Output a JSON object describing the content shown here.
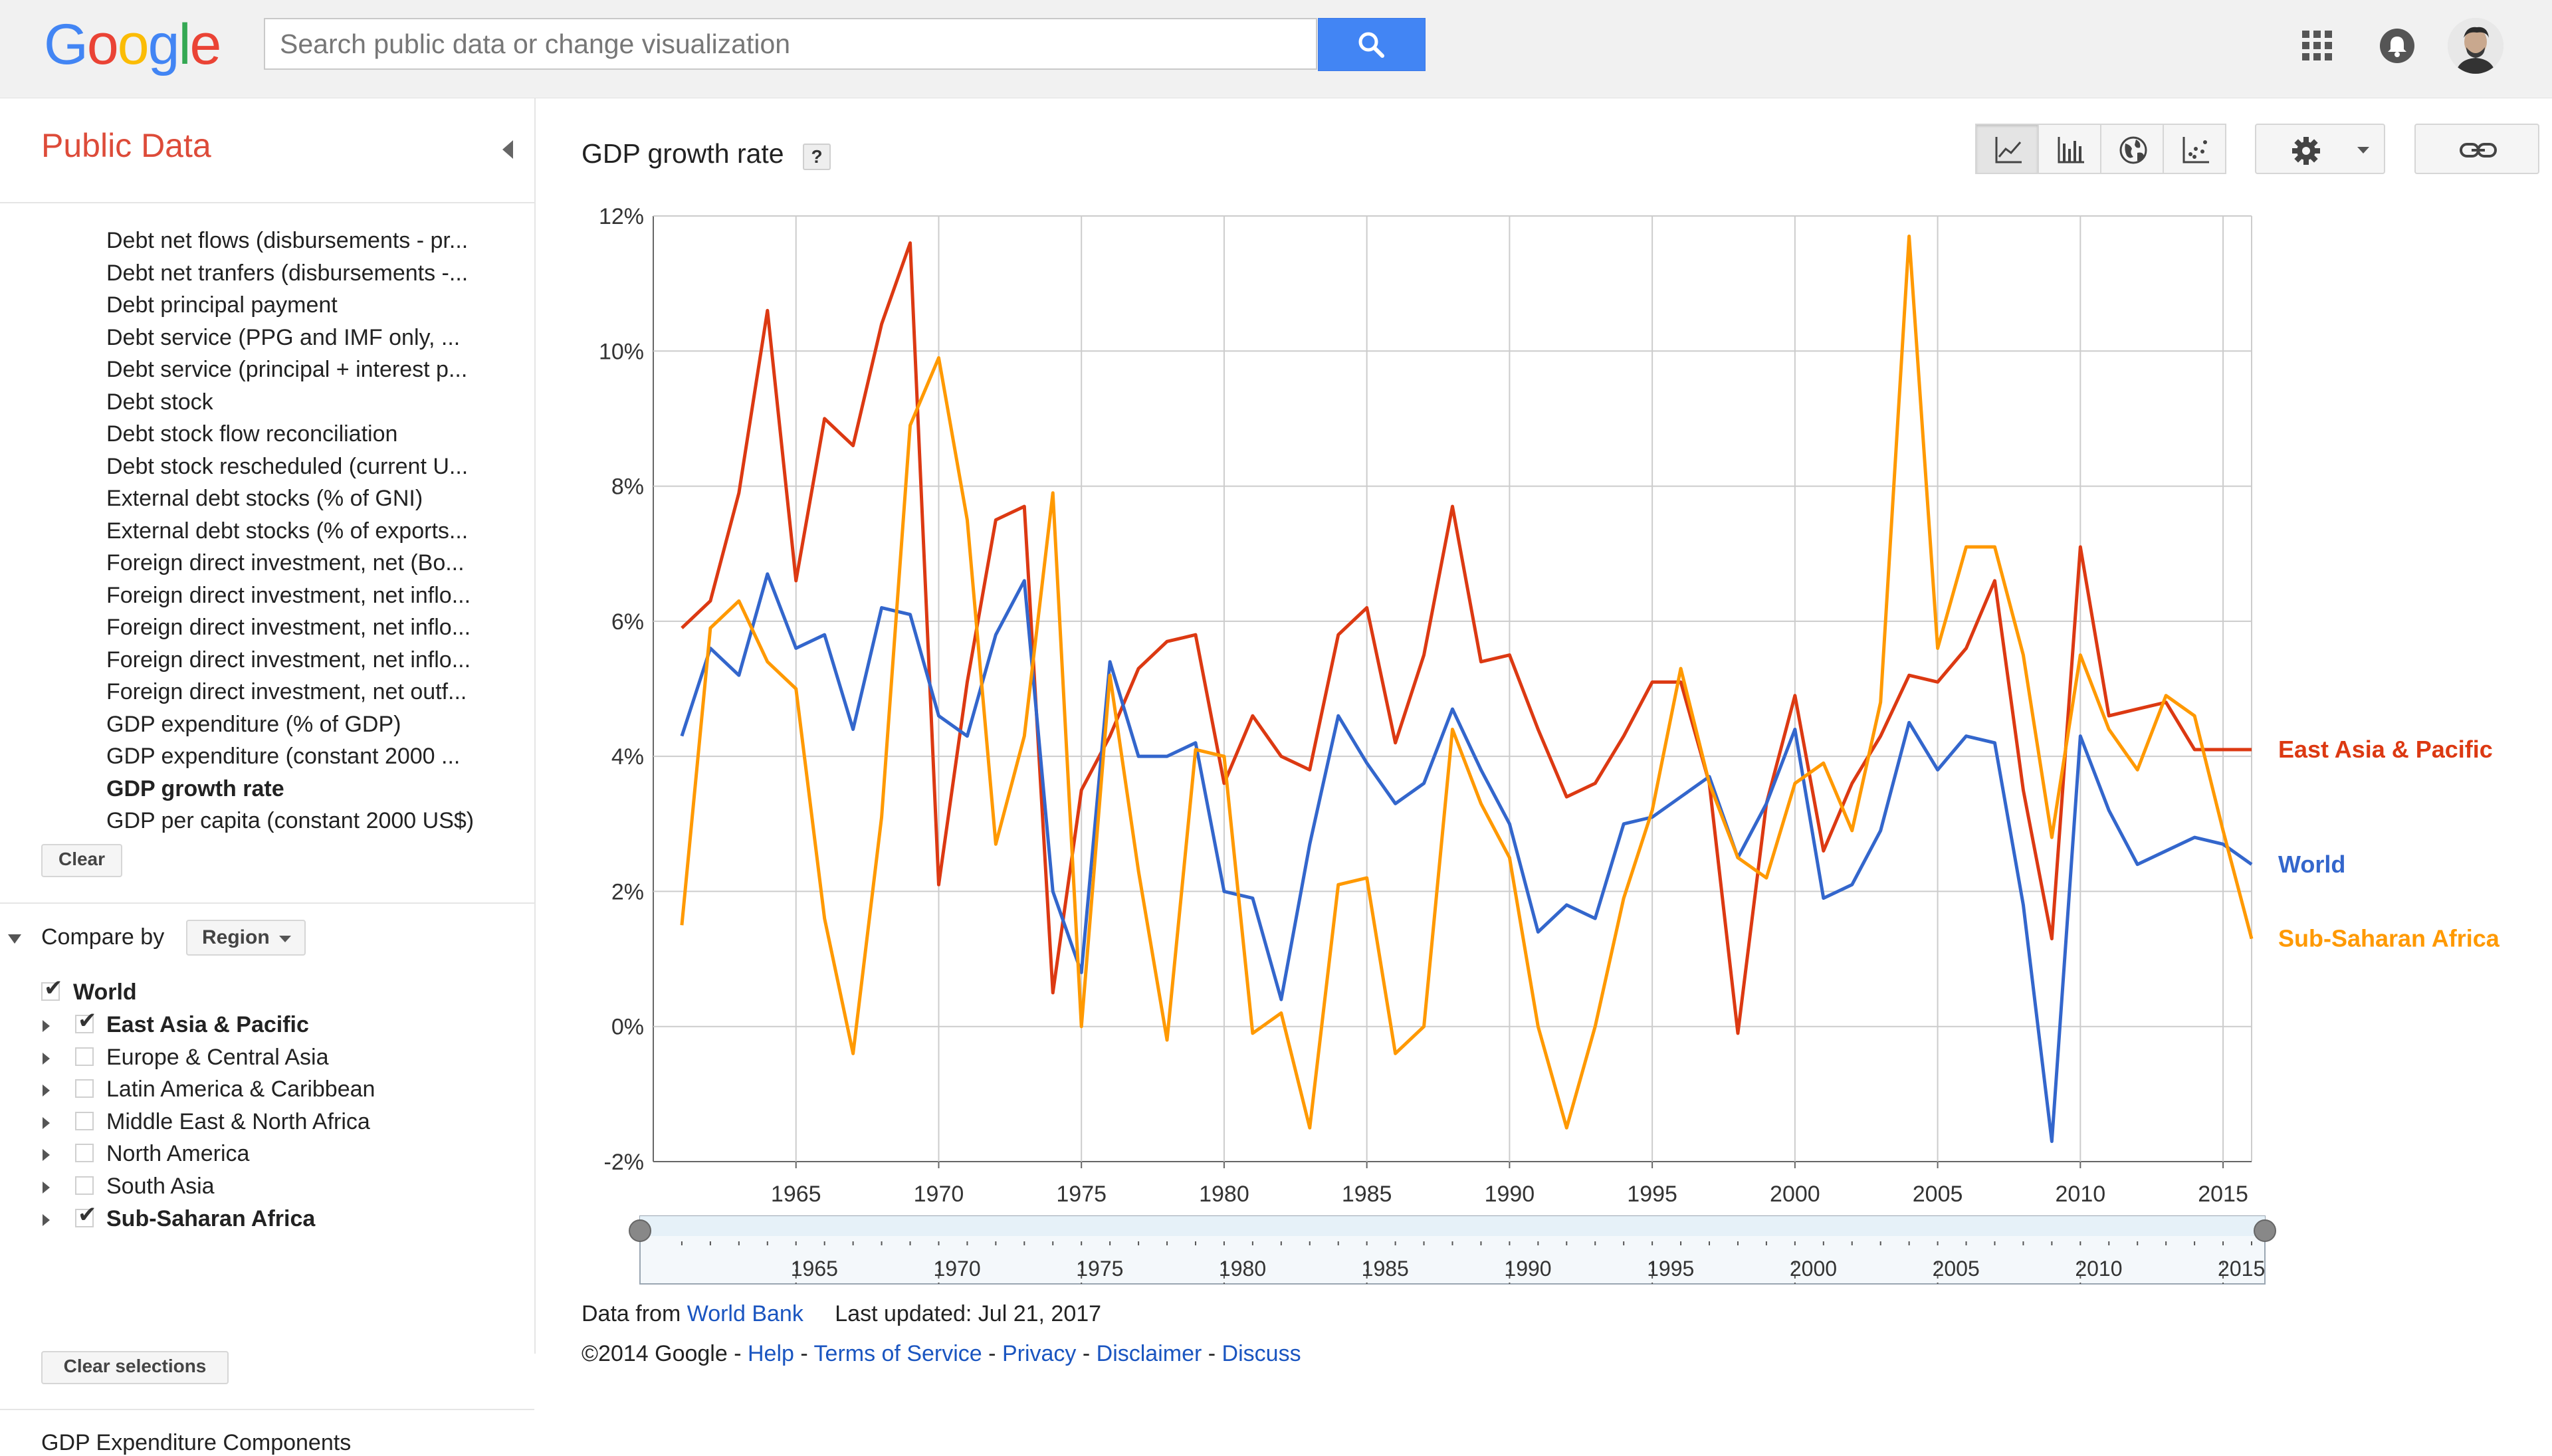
{
  "header": {
    "logo_letters": [
      {
        "ch": "G",
        "color": "#4285f4"
      },
      {
        "ch": "o",
        "color": "#ea4335"
      },
      {
        "ch": "o",
        "color": "#fbbc05"
      },
      {
        "ch": "g",
        "color": "#4285f4"
      },
      {
        "ch": "l",
        "color": "#34a853"
      },
      {
        "ch": "e",
        "color": "#ea4335"
      }
    ],
    "search_placeholder": "Search public data or change visualization",
    "icons": [
      "apps-icon",
      "notifications-icon",
      "avatar"
    ]
  },
  "sidebar": {
    "title": "Public Data",
    "metrics": [
      {
        "label": "Debt net flows (disbursements - pr...",
        "selected": false
      },
      {
        "label": "Debt net tranfers (disbursements -...",
        "selected": false
      },
      {
        "label": "Debt principal payment",
        "selected": false
      },
      {
        "label": "Debt service (PPG and IMF only, ...",
        "selected": false
      },
      {
        "label": "Debt service (principal + interest p...",
        "selected": false
      },
      {
        "label": "Debt stock",
        "selected": false
      },
      {
        "label": "Debt stock flow reconciliation",
        "selected": false
      },
      {
        "label": "Debt stock rescheduled (current U...",
        "selected": false
      },
      {
        "label": "External debt stocks (% of GNI)",
        "selected": false
      },
      {
        "label": "External debt stocks (% of exports...",
        "selected": false
      },
      {
        "label": "Foreign direct investment, net (Bo...",
        "selected": false
      },
      {
        "label": "Foreign direct investment, net inflo...",
        "selected": false
      },
      {
        "label": "Foreign direct investment, net inflo...",
        "selected": false
      },
      {
        "label": "Foreign direct investment, net inflo...",
        "selected": false
      },
      {
        "label": "Foreign direct investment, net outf...",
        "selected": false
      },
      {
        "label": "GDP expenditure (% of GDP)",
        "selected": false
      },
      {
        "label": "GDP expenditure (constant 2000 ...",
        "selected": false
      },
      {
        "label": "GDP growth rate",
        "selected": true
      },
      {
        "label": "GDP per capita (constant 2000 US$)",
        "selected": false
      }
    ],
    "clear_label": "Clear",
    "compare_by_label": "Compare by",
    "compare_by_value": "Region",
    "world": {
      "label": "World",
      "checked": true
    },
    "regions": [
      {
        "label": "East Asia & Pacific",
        "checked": true
      },
      {
        "label": "Europe & Central Asia",
        "checked": false
      },
      {
        "label": "Latin America & Caribbean",
        "checked": false
      },
      {
        "label": "Middle East & North Africa",
        "checked": false
      },
      {
        "label": "North America",
        "checked": false
      },
      {
        "label": "South Asia",
        "checked": false
      },
      {
        "label": "Sub-Saharan Africa",
        "checked": true
      }
    ],
    "clear_selections_label": "Clear selections",
    "next_section": "GDP Expenditure Components"
  },
  "main": {
    "title": "GDP growth rate",
    "help": "?",
    "view_buttons": [
      {
        "name": "line-chart-view-button",
        "icon": "line-chart-icon",
        "active": true
      },
      {
        "name": "bar-chart-view-button",
        "icon": "bar-chart-icon",
        "active": false
      },
      {
        "name": "map-view-button",
        "icon": "globe-icon",
        "active": false
      },
      {
        "name": "scatter-view-button",
        "icon": "scatter-chart-icon",
        "active": false
      }
    ],
    "settings_icon": "gear-icon",
    "link_icon": "link-icon"
  },
  "chart_data": {
    "type": "line",
    "title": "GDP growth rate",
    "xlabel": "",
    "ylabel": "",
    "xlim": [
      1960,
      2016
    ],
    "ylim": [
      -2,
      12
    ],
    "y_ticks": [
      -2,
      0,
      2,
      4,
      6,
      8,
      10,
      12
    ],
    "y_tick_labels": [
      "-2%",
      "0%",
      "2%",
      "4%",
      "6%",
      "8%",
      "10%",
      "12%"
    ],
    "x_ticks": [
      1965,
      1970,
      1975,
      1980,
      1985,
      1990,
      1995,
      2000,
      2005,
      2010,
      2015
    ],
    "x_tick_labels": [
      "1965",
      "1970",
      "1975",
      "1980",
      "1985",
      "1990",
      "1995",
      "2000",
      "2005",
      "2010",
      "2015"
    ],
    "grid": true,
    "legend": "right, labels at line ends",
    "x": [
      1961,
      1962,
      1963,
      1964,
      1965,
      1966,
      1967,
      1968,
      1969,
      1970,
      1971,
      1972,
      1973,
      1974,
      1975,
      1976,
      1977,
      1978,
      1979,
      1980,
      1981,
      1982,
      1983,
      1984,
      1985,
      1986,
      1987,
      1988,
      1989,
      1990,
      1991,
      1992,
      1993,
      1994,
      1995,
      1996,
      1997,
      1998,
      1999,
      2000,
      2001,
      2002,
      2003,
      2004,
      2005,
      2006,
      2007,
      2008,
      2009,
      2010,
      2011,
      2012,
      2013,
      2014,
      2015,
      2016
    ],
    "series": [
      {
        "name": "East Asia & Pacific",
        "color": "#dc3912",
        "values": [
          5.9,
          6.3,
          7.9,
          10.6,
          6.6,
          9.0,
          8.6,
          10.4,
          11.6,
          2.1,
          5.1,
          7.5,
          7.7,
          0.5,
          3.5,
          4.3,
          5.3,
          5.7,
          5.8,
          3.6,
          4.6,
          4.0,
          3.8,
          5.8,
          6.2,
          4.2,
          5.5,
          7.7,
          5.4,
          5.5,
          4.4,
          3.4,
          3.6,
          4.3,
          5.1,
          5.1,
          3.6,
          -0.1,
          3.3,
          4.9,
          2.6,
          3.6,
          4.3,
          5.2,
          5.1,
          5.6,
          6.6,
          3.5,
          1.3,
          7.1,
          4.6,
          4.7,
          4.8,
          4.1,
          4.1,
          4.1
        ]
      },
      {
        "name": "World",
        "color": "#3366cc",
        "values": [
          4.3,
          5.6,
          5.2,
          6.7,
          5.6,
          5.8,
          4.4,
          6.2,
          6.1,
          4.6,
          4.3,
          5.8,
          6.6,
          2.0,
          0.8,
          5.4,
          4.0,
          4.0,
          4.2,
          2.0,
          1.9,
          0.4,
          2.7,
          4.6,
          3.9,
          3.3,
          3.6,
          4.7,
          3.8,
          3.0,
          1.4,
          1.8,
          1.6,
          3.0,
          3.1,
          3.4,
          3.7,
          2.5,
          3.3,
          4.4,
          1.9,
          2.1,
          2.9,
          4.5,
          3.8,
          4.3,
          4.2,
          1.8,
          -1.7,
          4.3,
          3.2,
          2.4,
          2.6,
          2.8,
          2.7,
          2.4
        ]
      },
      {
        "name": "Sub-Saharan Africa",
        "color": "#ff9900",
        "values": [
          1.5,
          5.9,
          6.3,
          5.4,
          5.0,
          1.6,
          -0.4,
          3.1,
          8.9,
          9.9,
          7.5,
          2.7,
          4.3,
          7.9,
          0.0,
          5.2,
          2.3,
          -0.2,
          4.1,
          4.0,
          -0.1,
          0.2,
          -1.5,
          2.1,
          2.2,
          -0.4,
          0.0,
          4.4,
          3.3,
          2.5,
          0.0,
          -1.5,
          0.0,
          1.9,
          3.2,
          5.3,
          3.6,
          2.5,
          2.2,
          3.6,
          3.9,
          2.9,
          4.8,
          11.7,
          5.6,
          7.1,
          7.1,
          5.5,
          2.8,
          5.5,
          4.4,
          3.8,
          4.9,
          4.6,
          2.9,
          1.3
        ]
      }
    ],
    "time_slider_ticks": [
      "1965",
      "1970",
      "1975",
      "1980",
      "1985",
      "1990",
      "1995",
      "2000",
      "2005",
      "2010",
      "2015"
    ]
  },
  "footer": {
    "data_from": "Data from",
    "source": "World Bank",
    "updated": "Last updated: Jul 21, 2017",
    "legal_prefix": "©2014 Google - ",
    "legal_links": [
      "Help",
      "Terms of Service",
      "Privacy",
      "Disclaimer",
      "Discuss"
    ]
  }
}
